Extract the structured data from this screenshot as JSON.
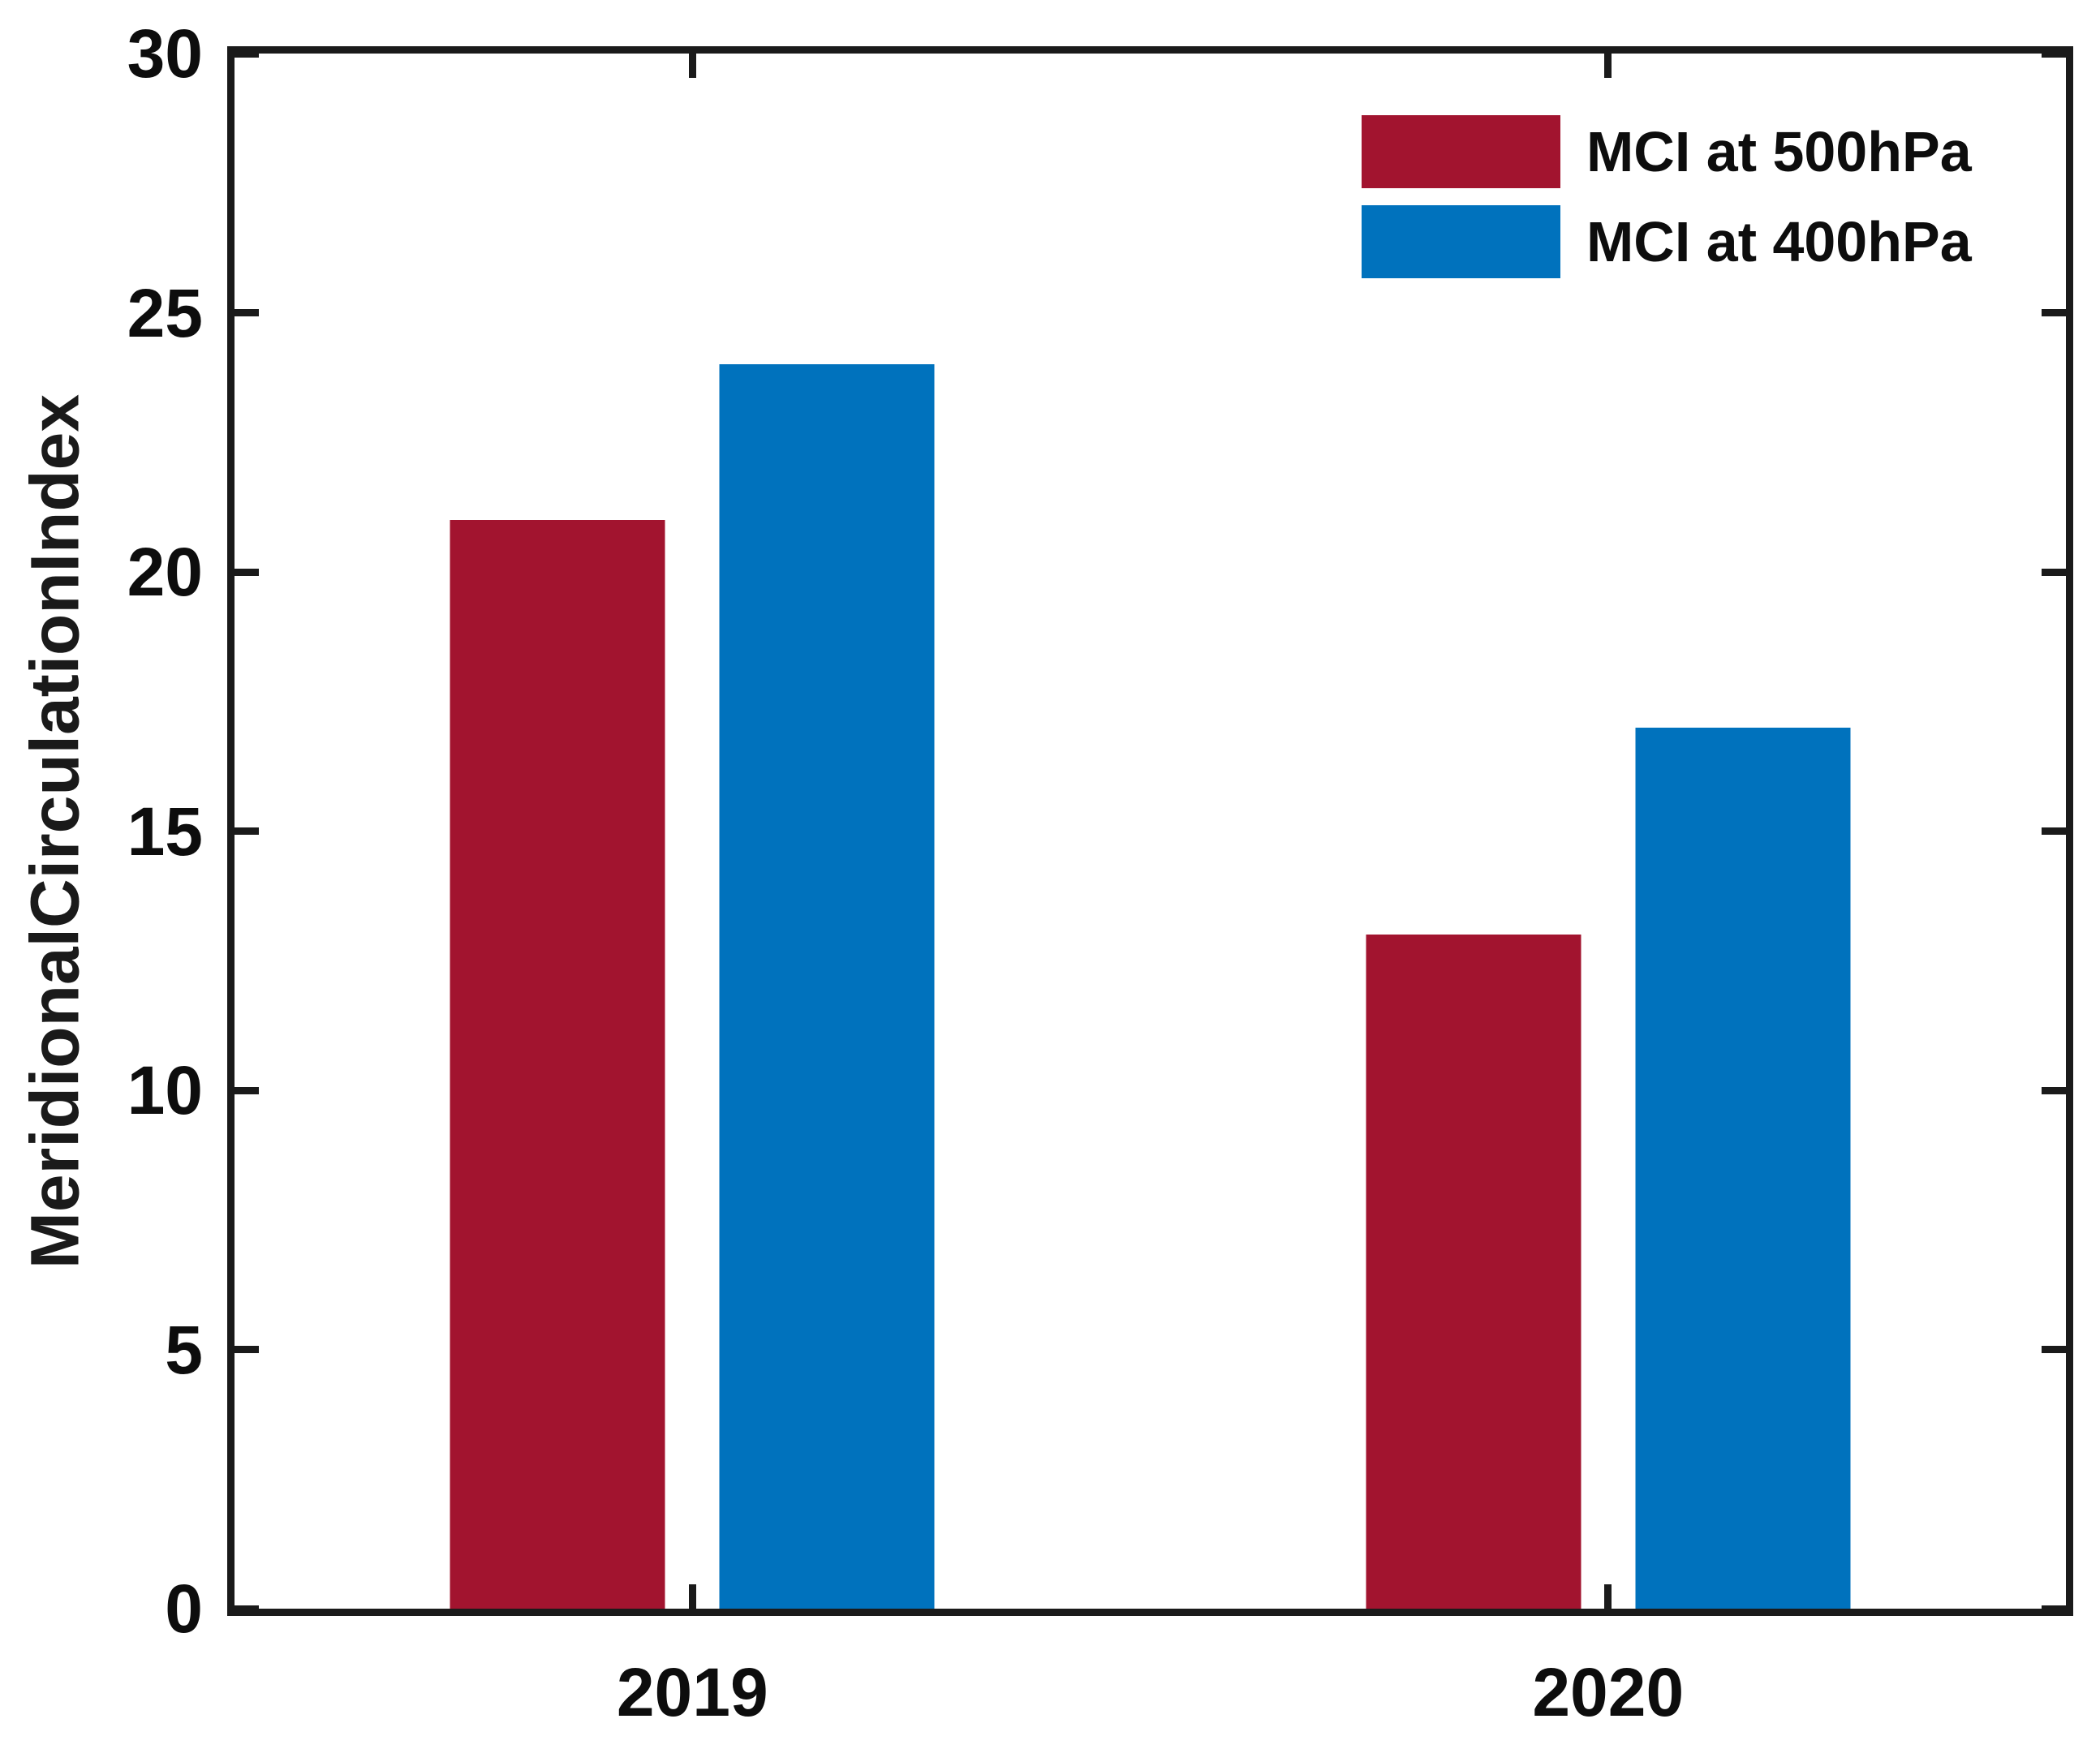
{
  "chart_data": {
    "type": "bar",
    "title": "",
    "categories": [
      "2019",
      "2020"
    ],
    "series": [
      {
        "name": "MCI at 500hPa",
        "color": "#A2142F",
        "values": [
          21,
          13
        ]
      },
      {
        "name": "MCI at 400hPa",
        "color": "#0072BD",
        "values": [
          24,
          17
        ]
      }
    ],
    "xlabel": "",
    "ylabel": "MeridionalCirculationIndex",
    "ylim": [
      0,
      30
    ],
    "yticks": [
      0,
      5,
      10,
      15,
      20,
      25,
      30
    ],
    "grid": false,
    "legend_position": "top-right",
    "axis_color": "#1a1a1a",
    "text_color": "#0d0d0d",
    "tick_direction": "in",
    "box": true
  }
}
